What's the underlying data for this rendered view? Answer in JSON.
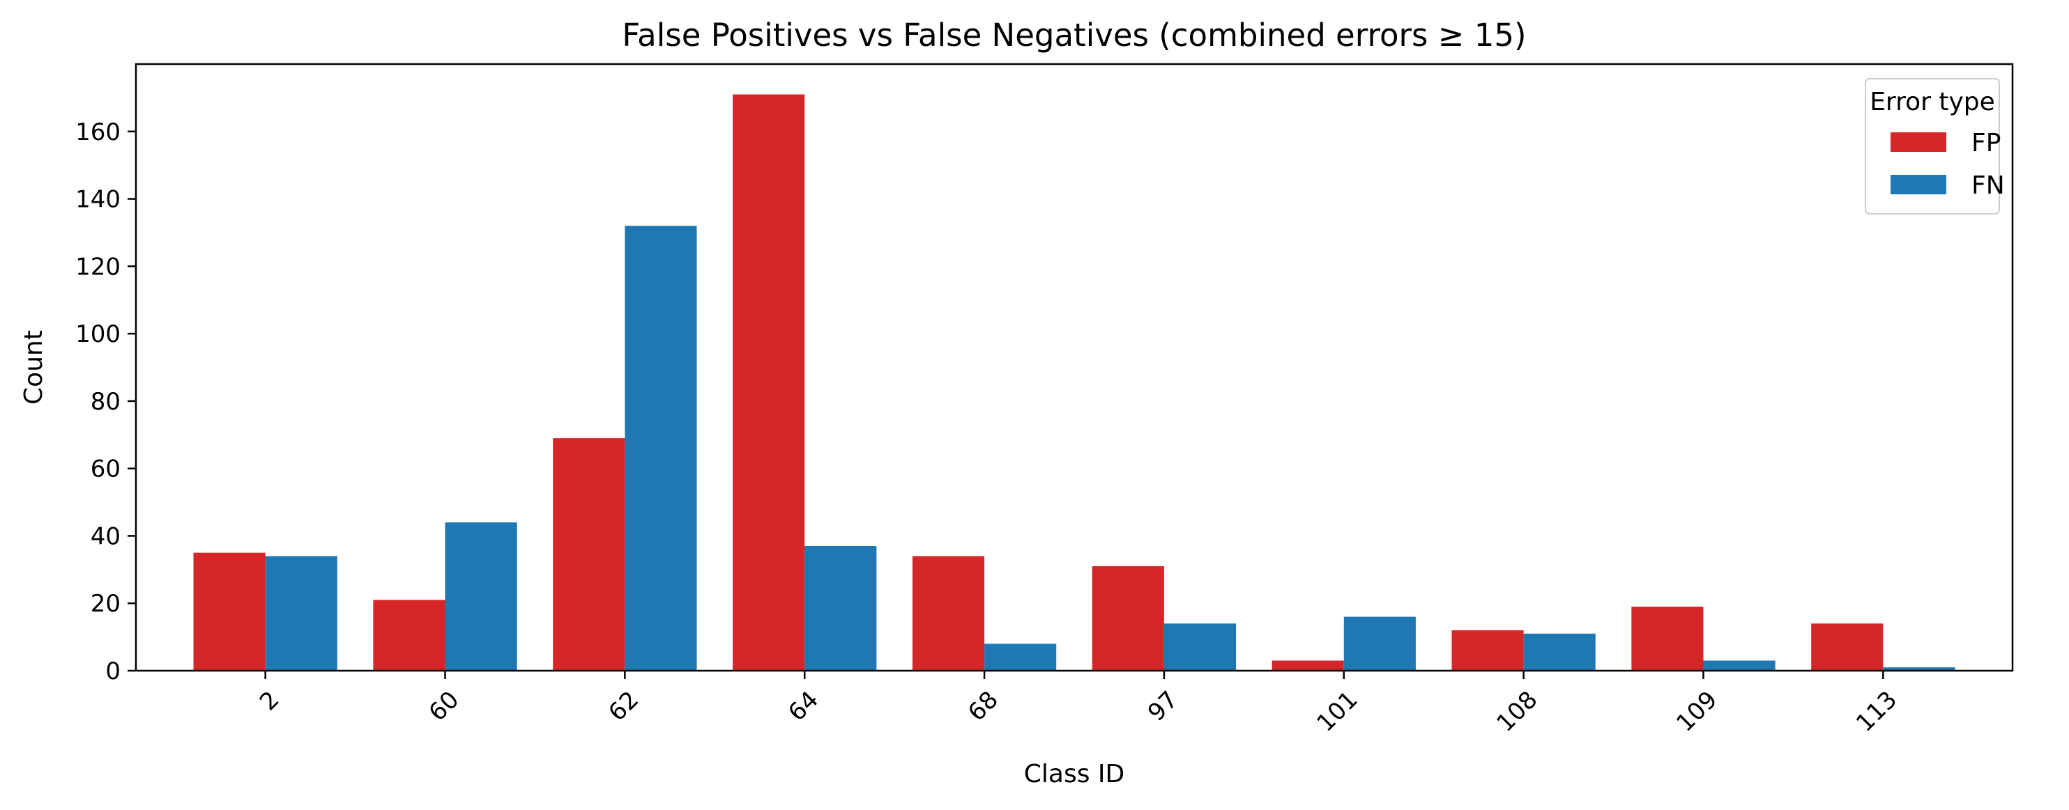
{
  "chart_data": {
    "type": "bar",
    "title": "False Positives vs False Negatives (combined errors ≥ 15)",
    "xlabel": "Class ID",
    "ylabel": "Count",
    "categories": [
      "2",
      "60",
      "62",
      "64",
      "68",
      "97",
      "101",
      "108",
      "109",
      "113"
    ],
    "series": [
      {
        "name": "FP",
        "color": "#d62728",
        "values": [
          35,
          21,
          69,
          171,
          34,
          31,
          3,
          12,
          19,
          14
        ]
      },
      {
        "name": "FN",
        "color": "#1f77b4",
        "values": [
          34,
          44,
          132,
          37,
          8,
          14,
          16,
          11,
          3,
          1
        ]
      }
    ],
    "ylim": [
      0,
      180
    ],
    "yticks": [
      0,
      20,
      40,
      60,
      80,
      100,
      120,
      140,
      160
    ],
    "legend": {
      "title": "Error type",
      "position": "top-right"
    },
    "grid": false
  }
}
